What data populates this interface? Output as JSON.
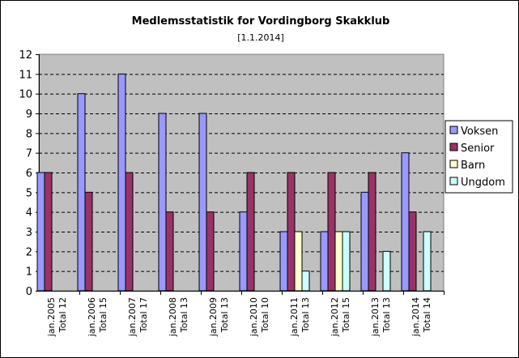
{
  "chart_data": {
    "type": "bar",
    "title": "Medlemsstatistik for Vordingborg Skakklub",
    "subtitle": "[1.1.2014]",
    "xlabel": "",
    "ylabel": "",
    "ylim": [
      0,
      12
    ],
    "yticks": [
      0,
      1,
      2,
      3,
      4,
      5,
      6,
      7,
      8,
      9,
      10,
      11,
      12
    ],
    "grid": "horizontal-dashed",
    "legend_position": "right",
    "categories": [
      [
        "jan.2005",
        "Total 12"
      ],
      [
        "jan.2006",
        "Total 15"
      ],
      [
        "jan.2007",
        "Total 17"
      ],
      [
        "jan.2008",
        "Total 13"
      ],
      [
        "jan.2009",
        "Total 13"
      ],
      [
        "jan.2010",
        "Total 10"
      ],
      [
        "jan.2011",
        "Total 13"
      ],
      [
        "jan.2012",
        "Total 15"
      ],
      [
        "jan.2013",
        "Total 13"
      ],
      [
        "jan.2014",
        "Total 14"
      ]
    ],
    "series": [
      {
        "name": "Voksen",
        "color": "#9999ff",
        "values": [
          6,
          10,
          11,
          9,
          9,
          4,
          3,
          3,
          5,
          7
        ]
      },
      {
        "name": "Senior",
        "color": "#993366",
        "values": [
          6,
          5,
          6,
          4,
          4,
          6,
          6,
          6,
          6,
          4
        ]
      },
      {
        "name": "Barn",
        "color": "#ffffcc",
        "values": [
          0,
          0,
          0,
          0,
          0,
          0,
          3,
          3,
          0,
          0
        ]
      },
      {
        "name": "Ungdom",
        "color": "#ccffff",
        "values": [
          0,
          0,
          0,
          0,
          0,
          0,
          1,
          3,
          2,
          3
        ]
      }
    ],
    "plot_background": "#c0c0c0"
  }
}
